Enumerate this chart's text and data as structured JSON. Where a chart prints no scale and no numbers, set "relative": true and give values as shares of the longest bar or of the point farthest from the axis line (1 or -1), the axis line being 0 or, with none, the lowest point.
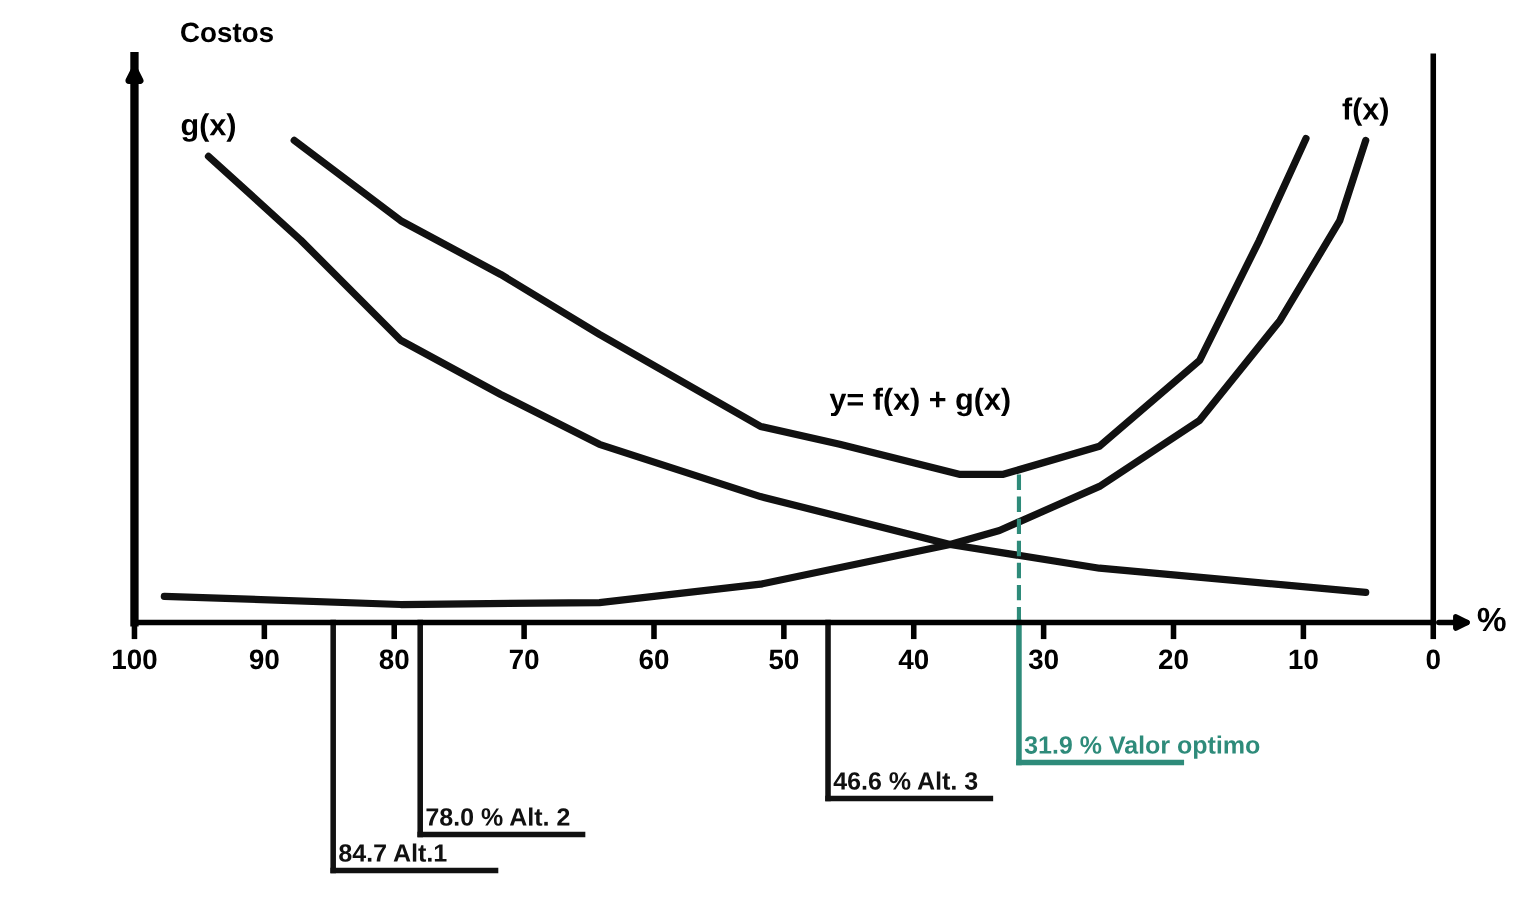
{
  "chart_data": {
    "type": "line",
    "relative": true,
    "ylabel": "Costos",
    "xlabel": "%",
    "xlim": [
      100,
      0
    ],
    "xticks": [
      100,
      90,
      80,
      70,
      60,
      50,
      40,
      30,
      20,
      10,
      0
    ],
    "legend": false,
    "grid": false,
    "marker": "none",
    "line_style": "solid",
    "series": [
      {
        "name": "g(x)",
        "color": "#111111",
        "x": [
          94.3,
          87.2,
          79.5,
          71.8,
          64.2,
          51.8,
          37.2,
          25.7,
          5.2
        ],
        "values": [
          0.963,
          0.79,
          0.583,
          0.471,
          0.368,
          0.26,
          0.161,
          0.112,
          0.062
        ]
      },
      {
        "name": "f(x)",
        "color": "#111111",
        "x": [
          97.7,
          79.5,
          64.2,
          51.8,
          37.2,
          33.4,
          25.7,
          18.0,
          11.8,
          7.2,
          5.2
        ],
        "values": [
          0.054,
          0.037,
          0.041,
          0.079,
          0.161,
          0.19,
          0.281,
          0.417,
          0.624,
          0.83,
          0.996
        ]
      },
      {
        "name": "y= f(x) + g(x)",
        "color": "#111111",
        "x": [
          87.7,
          79.5,
          71.8,
          64.2,
          51.8,
          45.7,
          36.5,
          33.1,
          25.7,
          18.0,
          13.4,
          9.8
        ],
        "values": [
          0.996,
          0.83,
          0.719,
          0.595,
          0.405,
          0.368,
          0.306,
          0.306,
          0.364,
          0.541,
          0.789,
          1.0
        ]
      }
    ],
    "ref_lines": [
      {
        "axis": "x",
        "value": 31.9,
        "label": "31.9 % Valor optimo",
        "color": "#2e8b7a",
        "line_style": "dashed"
      },
      {
        "axis": "x",
        "value": 46.6,
        "label": "46.6 % Alt. 3",
        "color": "#111111",
        "line_style": "solid"
      },
      {
        "axis": "x",
        "value": 78.0,
        "label": "78.0 % Alt. 2",
        "color": "#111111",
        "line_style": "solid"
      },
      {
        "axis": "x",
        "value": 84.7,
        "label": "84.7 Alt.1",
        "color": "#111111",
        "line_style": "solid"
      }
    ]
  }
}
